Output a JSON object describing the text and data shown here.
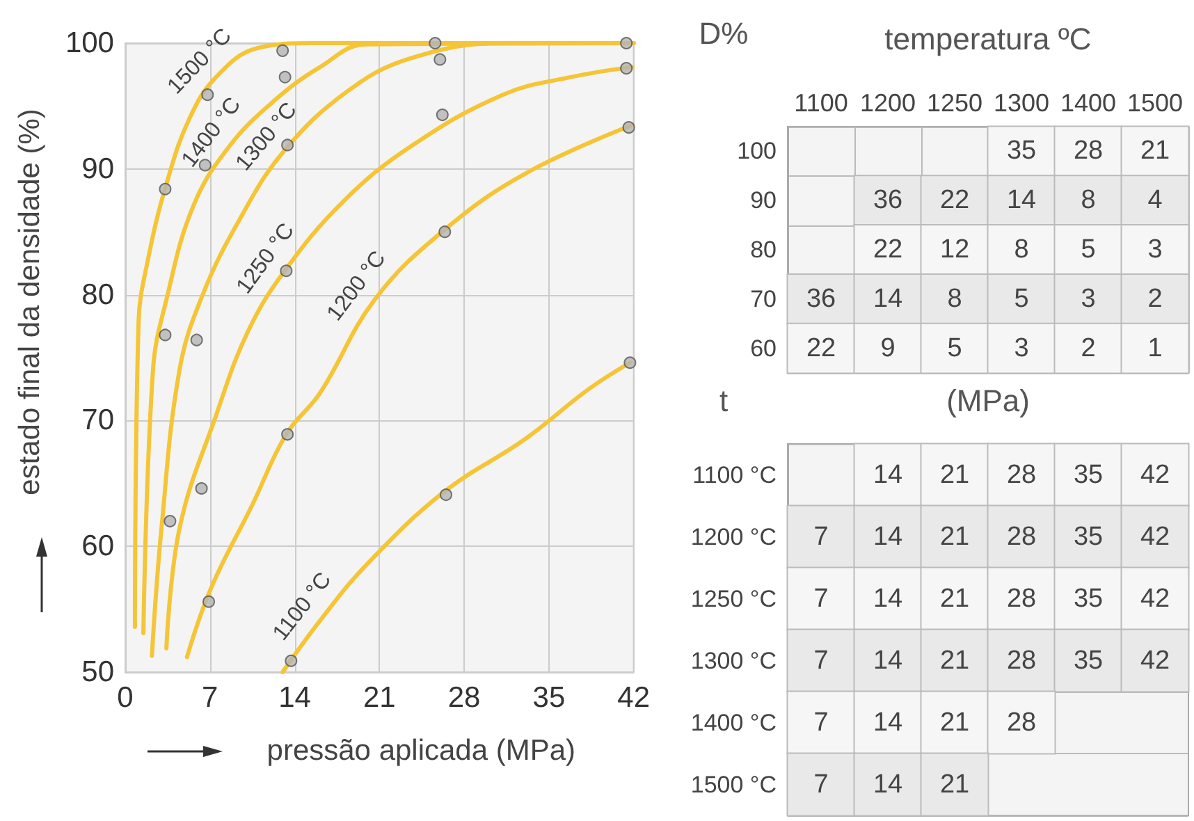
{
  "chart_data": [
    {
      "type": "line",
      "xlabel": "pressão aplicada (MPa)",
      "ylabel": "estado final da densidade (%)",
      "xlim": [
        0,
        42
      ],
      "xticks": [
        0,
        7,
        14,
        21,
        28,
        35,
        42
      ],
      "ylim": [
        50,
        100
      ],
      "yticks": [
        50,
        60,
        70,
        80,
        90,
        100
      ],
      "grid": true,
      "series": [
        {
          "name": "1500 °C",
          "color": "#f5c537",
          "marker": "none",
          "x": [
            0.8,
            1.1,
            1.9,
            3.4,
            5.3,
            7.5,
            10.9,
            15.4,
            42
          ],
          "values": [
            53.6,
            77.8,
            82.9,
            88.8,
            94.0,
            97.3,
            99.6,
            100,
            100
          ]
        },
        {
          "name": "1400 °C",
          "color": "#f5c537",
          "marker": "none",
          "x": [
            1.5,
            2.3,
            3.4,
            5.6,
            8.6,
            12.4,
            16.1,
            19.9,
            42
          ],
          "values": [
            53.1,
            74.1,
            79.6,
            87.0,
            91.8,
            95.5,
            98.1,
            99.9,
            100
          ]
        },
        {
          "name": "1300 °C",
          "color": "#f5c537",
          "marker": "none",
          "x": [
            2.2,
            3.0,
            4.5,
            6.4,
            9.4,
            13.1,
            18.4,
            23.6,
            31.2,
            42
          ],
          "values": [
            51.3,
            61.5,
            74.1,
            80.0,
            85.9,
            91.4,
            96.2,
            98.8,
            100,
            100
          ]
        },
        {
          "name": "1250 °C",
          "color": "#f5c537",
          "marker": "none",
          "x": [
            3.4,
            4.5,
            7.5,
            10.1,
            13.1,
            18.0,
            23.6,
            31.2,
            36.8,
            41.9
          ],
          "values": [
            51.9,
            61.5,
            70.4,
            77.0,
            81.8,
            87.4,
            91.8,
            95.9,
            97.3,
            98.1
          ]
        },
        {
          "name": "1200 °C",
          "color": "#f5c537",
          "marker": "none",
          "x": [
            5.1,
            7.1,
            10.5,
            13.3,
            16.1,
            20.6,
            26.3,
            33.0,
            41.9
          ],
          "values": [
            51.2,
            56.7,
            63.3,
            68.9,
            72.2,
            79.6,
            85.1,
            89.6,
            93.5
          ]
        },
        {
          "name": "1100 °C",
          "color": "#f5c537",
          "marker": "none",
          "x": [
            13.0,
            16.1,
            19.9,
            26.3,
            33.0,
            38.3,
            41.7
          ],
          "values": [
            50.0,
            54.1,
            58.5,
            64.3,
            68.5,
            72.5,
            74.6
          ]
        },
        {
          "type": "scatter",
          "color": "#b4b4b4",
          "marker": "circle",
          "x": [
            3.3,
            3.3,
            6.8,
            6.6,
            5.9,
            13.0,
            13.2,
            13.4,
            13.3,
            25.6,
            26.0,
            26.2,
            26.4,
            41.4,
            41.4,
            41.6,
            41.7,
            13.4,
            6.3,
            3.7,
            6.9,
            13.7,
            26.5
          ],
          "values": [
            88.4,
            76.8,
            95.9,
            90.3,
            76.4,
            99.4,
            97.3,
            91.9,
            81.9,
            100,
            98.7,
            94.3,
            85.0,
            100,
            98.0,
            93.3,
            74.6,
            68.9,
            64.6,
            62.0,
            55.6,
            50.9,
            64.1
          ]
        }
      ]
    },
    {
      "type": "heatmap",
      "xlabel": "temperatura ºC",
      "ylabel": "D%",
      "data_labels": true,
      "categories": [
        "1100",
        "1200",
        "1250",
        "1300",
        "1400",
        "1500"
      ],
      "y_categories": [
        "100",
        "90",
        "80",
        "70",
        "60"
      ],
      "cells": [
        [
          null,
          null,
          null,
          35,
          28,
          21
        ],
        [
          null,
          36,
          22,
          14,
          8,
          4
        ],
        [
          null,
          22,
          12,
          8,
          5,
          3
        ],
        [
          36,
          14,
          8,
          5,
          3,
          2
        ],
        [
          22,
          9,
          5,
          3,
          2,
          1
        ]
      ]
    },
    {
      "type": "heatmap",
      "xlabel": "(MPa)",
      "ylabel": "t",
      "data_labels": true,
      "categories": [
        null,
        null,
        null,
        null,
        null,
        null
      ],
      "y_categories": [
        "1100 °C",
        "1200 °C",
        "1250 °C",
        "1300 °C",
        "1400 °C",
        "1500 °C"
      ],
      "cells": [
        [
          null,
          14,
          21,
          28,
          35,
          42
        ],
        [
          7,
          14,
          21,
          28,
          35,
          42
        ],
        [
          7,
          14,
          21,
          28,
          35,
          42
        ],
        [
          7,
          14,
          21,
          28,
          35,
          42
        ],
        [
          7,
          14,
          21,
          28,
          null,
          null
        ],
        [
          7,
          14,
          21,
          null,
          null,
          null
        ]
      ]
    }
  ]
}
